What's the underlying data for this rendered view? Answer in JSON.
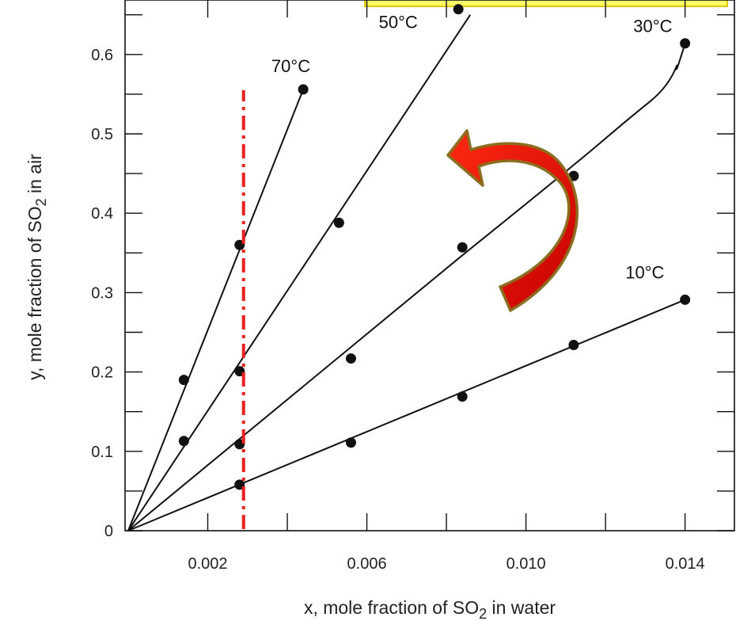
{
  "chart_data": {
    "type": "scatter",
    "title": "",
    "xlabel": "x, mole fraction of SO",
    "xlabel_sub": "2",
    "xlabel_tail": " in water",
    "ylabel": "y, mole fraction of SO",
    "ylabel_sub": "2",
    "ylabel_tail": " in air",
    "xlim": [
      0,
      0.016
    ],
    "ylim": [
      0,
      0.66
    ],
    "x_ticks": [
      0.002,
      0.006,
      0.01,
      0.014
    ],
    "x_tick_labels": [
      "0.002",
      "0.006",
      "0.010",
      "0.014"
    ],
    "x_minor_ticks": [
      0.004,
      0.008,
      0.012,
      0.016
    ],
    "y_ticks": [
      0,
      0.1,
      0.2,
      0.3,
      0.4,
      0.5,
      0.6
    ],
    "y_tick_labels": [
      "0",
      "0.1",
      "0.2",
      "0.3",
      "0.4",
      "0.5",
      "0.6"
    ],
    "y_minor_ticks": [
      0.05,
      0.15,
      0.25,
      0.35,
      0.45,
      0.55,
      0.65
    ],
    "grid": false,
    "series": [
      {
        "name": "10°C",
        "points": [
          [
            0,
            0
          ],
          [
            0.0028,
            0.058
          ],
          [
            0.0056,
            0.111
          ],
          [
            0.0084,
            0.169
          ],
          [
            0.0112,
            0.234
          ],
          [
            0.014,
            0.291
          ]
        ],
        "line": [
          [
            0,
            0
          ],
          [
            0.014,
            0.291
          ]
        ],
        "label_pos": [
          0.0125,
          0.318
        ]
      },
      {
        "name": "30°C",
        "points": [
          [
            0,
            0
          ],
          [
            0.0028,
            0.109
          ],
          [
            0.0056,
            0.217
          ],
          [
            0.0084,
            0.357
          ],
          [
            0.0112,
            0.447
          ],
          [
            0.014,
            0.614
          ]
        ],
        "line": [
          [
            0,
            0
          ],
          [
            0.0084,
            0.347
          ],
          [
            0.0112,
            0.46
          ],
          [
            0.0126,
            0.52
          ],
          [
            0.0136,
            0.56
          ],
          [
            0.014,
            0.614
          ]
        ],
        "label_pos": [
          0.0127,
          0.628
        ]
      },
      {
        "name": "50°C",
        "points": [
          [
            0,
            0
          ],
          [
            0.0014,
            0.113
          ],
          [
            0.0028,
            0.201
          ],
          [
            0.0053,
            0.388
          ],
          [
            0.0083,
            0.657
          ]
        ],
        "line": [
          [
            0,
            0
          ],
          [
            0.0086,
            0.65
          ]
        ],
        "label_pos": [
          0.0063,
          0.633
        ]
      },
      {
        "name": "70°C",
        "points": [
          [
            0,
            0
          ],
          [
            0.0014,
            0.19
          ],
          [
            0.0028,
            0.36
          ],
          [
            0.0044,
            0.556
          ]
        ],
        "line": [
          [
            0,
            0
          ],
          [
            0.0044,
            0.556
          ]
        ],
        "label_pos": [
          0.0036,
          0.578
        ]
      }
    ],
    "reference_line": {
      "type": "vertical",
      "x": 0.0029,
      "y_top": 0.555,
      "color": "#e8201e",
      "style": "dash-dot"
    },
    "annotation_arrow": {
      "fill": "#cc0000",
      "outline": "#8c6d1f",
      "direction": "counterclockwise"
    },
    "highlight_box": {
      "fill": "#ffff66",
      "outline": "#e3c400"
    }
  }
}
